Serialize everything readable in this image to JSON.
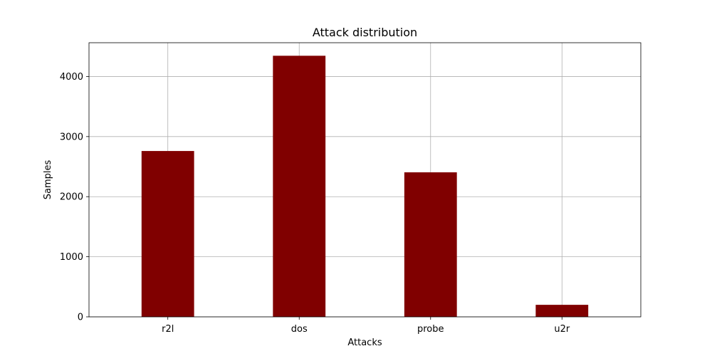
{
  "chart_data": {
    "type": "bar",
    "title": "Attack distribution",
    "xlabel": "Attacks",
    "ylabel": "Samples",
    "categories": [
      "r2l",
      "dos",
      "probe",
      "u2r"
    ],
    "values": [
      2760,
      4345,
      2405,
      200
    ],
    "ylim": [
      0,
      4562
    ],
    "yticks": [
      0,
      1000,
      2000,
      3000,
      4000
    ],
    "grid": true,
    "bar_color": "#800000"
  }
}
